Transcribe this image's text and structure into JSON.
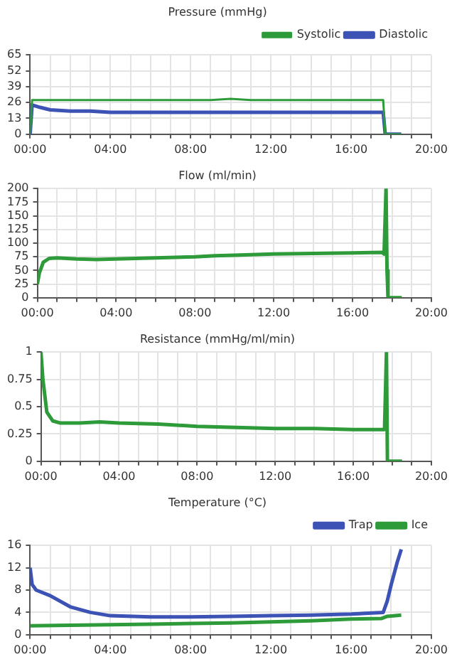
{
  "chart_data": [
    {
      "type": "line",
      "title": "Pressure (mmHg)",
      "legend": "top right",
      "grid": true,
      "xlim": [
        0,
        20
      ],
      "xticks": [
        {
          "value": 0,
          "label": "00:00"
        },
        {
          "value": 1,
          "label": null
        },
        {
          "value": 2,
          "label": null
        },
        {
          "value": 3,
          "label": null
        },
        {
          "value": 4,
          "label": "04:00"
        },
        {
          "value": 5,
          "label": null
        },
        {
          "value": 6,
          "label": null
        },
        {
          "value": 7,
          "label": null
        },
        {
          "value": 8,
          "label": "08:00"
        },
        {
          "value": 9,
          "label": null
        },
        {
          "value": 10,
          "label": null
        },
        {
          "value": 11,
          "label": null
        },
        {
          "value": 12,
          "label": "12:00"
        },
        {
          "value": 13,
          "label": null
        },
        {
          "value": 14,
          "label": null
        },
        {
          "value": 15,
          "label": null
        },
        {
          "value": 16,
          "label": "16:00"
        },
        {
          "value": 17,
          "label": null
        },
        {
          "value": 18,
          "label": null
        },
        {
          "value": 19,
          "label": null
        },
        {
          "value": 20,
          "label": "20:00"
        }
      ],
      "ylim": [
        0,
        65
      ],
      "yticks": [
        0,
        13,
        26,
        39,
        52,
        65
      ],
      "x": [
        0,
        0.1,
        0.5,
        1,
        2,
        3,
        4,
        5,
        6,
        7,
        8,
        9,
        10,
        11,
        12,
        13,
        14,
        15,
        16,
        17,
        17.6,
        17.7,
        18.5
      ],
      "series": [
        {
          "name": "Systolic",
          "color": "#2e9b3a",
          "values": [
            0,
            28,
            28,
            28,
            28,
            28,
            28,
            28,
            28,
            28,
            28,
            28,
            29,
            28,
            28,
            28,
            28,
            28,
            28,
            28,
            28,
            0,
            0
          ]
        },
        {
          "name": "Diastolic",
          "color": "#3d52b5",
          "values": [
            0,
            24,
            22,
            20,
            19,
            19,
            18,
            18,
            18,
            18,
            18,
            18,
            18,
            18,
            18,
            18,
            18,
            18,
            18,
            18,
            18,
            0,
            0
          ]
        }
      ]
    },
    {
      "type": "line",
      "title": "Flow (ml/min)",
      "grid": true,
      "xlim": [
        0,
        20
      ],
      "xticks": [
        {
          "value": 0,
          "label": "00:00"
        },
        {
          "value": 1,
          "label": null
        },
        {
          "value": 2,
          "label": null
        },
        {
          "value": 3,
          "label": null
        },
        {
          "value": 4,
          "label": "04:00"
        },
        {
          "value": 5,
          "label": null
        },
        {
          "value": 6,
          "label": null
        },
        {
          "value": 7,
          "label": null
        },
        {
          "value": 8,
          "label": "08:00"
        },
        {
          "value": 9,
          "label": null
        },
        {
          "value": 10,
          "label": null
        },
        {
          "value": 11,
          "label": null
        },
        {
          "value": 12,
          "label": "12:00"
        },
        {
          "value": 13,
          "label": null
        },
        {
          "value": 14,
          "label": null
        },
        {
          "value": 15,
          "label": null
        },
        {
          "value": 16,
          "label": "16:00"
        },
        {
          "value": 17,
          "label": null
        },
        {
          "value": 18,
          "label": null
        },
        {
          "value": 19,
          "label": null
        },
        {
          "value": 20,
          "label": "20:00"
        }
      ],
      "ylim": [
        0,
        200
      ],
      "yticks": [
        0,
        25,
        50,
        75,
        100,
        125,
        150,
        175,
        200
      ],
      "x": [
        0,
        0.1,
        0.3,
        0.6,
        1,
        2,
        3,
        4,
        6,
        8,
        9,
        10,
        12,
        14,
        16,
        17.5,
        17.6,
        17.7,
        17.75,
        17.8,
        18,
        18.5
      ],
      "series": [
        {
          "color": "#2e9b3a",
          "values": [
            25,
            45,
            65,
            72,
            73,
            71,
            70,
            71,
            73,
            75,
            77,
            78,
            80,
            81,
            82,
            83,
            80,
            200,
            50,
            0,
            0,
            0
          ]
        }
      ]
    },
    {
      "type": "line",
      "title": "Resistance (mmHg/ml/min)",
      "grid": true,
      "xlim": [
        0,
        20
      ],
      "xticks": [
        {
          "value": 0,
          "label": "00:00"
        },
        {
          "value": 1,
          "label": null
        },
        {
          "value": 2,
          "label": null
        },
        {
          "value": 3,
          "label": null
        },
        {
          "value": 4,
          "label": "04:00"
        },
        {
          "value": 5,
          "label": null
        },
        {
          "value": 6,
          "label": null
        },
        {
          "value": 7,
          "label": null
        },
        {
          "value": 8,
          "label": "08:00"
        },
        {
          "value": 9,
          "label": null
        },
        {
          "value": 10,
          "label": null
        },
        {
          "value": 11,
          "label": null
        },
        {
          "value": 12,
          "label": "12:00"
        },
        {
          "value": 13,
          "label": null
        },
        {
          "value": 14,
          "label": null
        },
        {
          "value": 15,
          "label": null
        },
        {
          "value": 16,
          "label": "16:00"
        },
        {
          "value": 17,
          "label": null
        },
        {
          "value": 18,
          "label": null
        },
        {
          "value": 19,
          "label": null
        },
        {
          "value": 20,
          "label": "20:00"
        }
      ],
      "ylim": [
        0,
        1
      ],
      "yticks": [
        0,
        0.25,
        0.5,
        0.75,
        1
      ],
      "x": [
        0,
        0.1,
        0.3,
        0.6,
        1,
        2,
        3,
        4,
        6,
        8,
        10,
        12,
        14,
        16,
        17.6,
        17.7,
        17.75,
        18.5
      ],
      "series": [
        {
          "color": "#2e9b3a",
          "values": [
            1,
            0.75,
            0.45,
            0.37,
            0.35,
            0.35,
            0.36,
            0.35,
            0.34,
            0.32,
            0.31,
            0.3,
            0.3,
            0.29,
            0.29,
            1,
            0,
            0
          ]
        }
      ]
    },
    {
      "type": "line",
      "title": "Temperature (°C)",
      "legend": "top right",
      "grid": true,
      "xlim": [
        0,
        20
      ],
      "xticks": [
        {
          "value": 0,
          "label": "00:00"
        },
        {
          "value": 1,
          "label": null
        },
        {
          "value": 2,
          "label": null
        },
        {
          "value": 3,
          "label": null
        },
        {
          "value": 4,
          "label": "04:00"
        },
        {
          "value": 5,
          "label": null
        },
        {
          "value": 6,
          "label": null
        },
        {
          "value": 7,
          "label": null
        },
        {
          "value": 8,
          "label": "08:00"
        },
        {
          "value": 9,
          "label": null
        },
        {
          "value": 10,
          "label": null
        },
        {
          "value": 11,
          "label": null
        },
        {
          "value": 12,
          "label": "12:00"
        },
        {
          "value": 13,
          "label": null
        },
        {
          "value": 14,
          "label": null
        },
        {
          "value": 15,
          "label": null
        },
        {
          "value": 16,
          "label": "16:00"
        },
        {
          "value": 17,
          "label": null
        },
        {
          "value": 18,
          "label": null
        },
        {
          "value": 19,
          "label": null
        },
        {
          "value": 20,
          "label": "20:00"
        }
      ],
      "ylim": [
        0,
        16
      ],
      "yticks": [
        0,
        4,
        8,
        12,
        16
      ],
      "series": [
        {
          "name": "Trap",
          "color": "#3d52b5",
          "x": [
            0,
            0.1,
            0.3,
            1,
            2,
            3,
            4,
            6,
            8,
            10,
            12,
            14,
            16,
            17.6,
            17.8,
            18,
            18.3,
            18.5
          ],
          "values": [
            12,
            9,
            8,
            7,
            5,
            4,
            3.4,
            3.2,
            3.2,
            3.3,
            3.4,
            3.5,
            3.7,
            4,
            6,
            9,
            13,
            15.3
          ]
        },
        {
          "name": "Ice",
          "color": "#2e9b3a",
          "x": [
            0,
            2,
            4,
            6,
            8,
            10,
            12,
            14,
            16,
            17.5,
            17.8,
            18.5
          ],
          "values": [
            1.6,
            1.7,
            1.8,
            1.9,
            2,
            2.1,
            2.3,
            2.5,
            2.8,
            2.9,
            3.3,
            3.5
          ]
        }
      ]
    }
  ]
}
